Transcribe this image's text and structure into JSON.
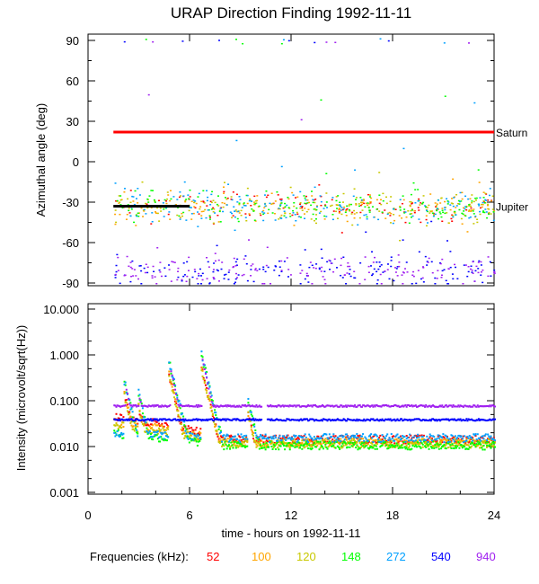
{
  "chart_data": [
    {
      "type": "scatter",
      "title": "URAP Direction Finding  1992-11-11",
      "ylabel": "Azimuthal angle (deg)",
      "ylim": [
        -90,
        95
      ],
      "yticks": [
        "90",
        "60",
        "30",
        "0",
        "-30",
        "-60",
        "-90"
      ],
      "ytick_values": [
        90,
        60,
        30,
        0,
        -30,
        -60,
        -90
      ],
      "annotations": [
        {
          "text": "Saturn",
          "value": 22
        },
        {
          "text": "Jupiter",
          "value": -33
        }
      ],
      "reference_lines": [
        {
          "name": "Saturn",
          "color": "#ff0000",
          "value": 22,
          "x": [
            1.5,
            24
          ]
        },
        {
          "name": "Jupiter",
          "color": "#000000",
          "value": -33,
          "x": [
            1.5,
            6
          ]
        }
      ],
      "clusters": [
        {
          "freqs": [
            "52",
            "100",
            "120",
            "148",
            "272"
          ],
          "center": -33,
          "spread": 8,
          "x": [
            1.5,
            24
          ]
        },
        {
          "freqs": [
            "540",
            "940"
          ],
          "center": -80,
          "spread": 8,
          "x": [
            1.5,
            24
          ]
        }
      ]
    },
    {
      "type": "line",
      "xlabel": "time - hours on 1992-11-11",
      "ylabel": "Intensity (microvolt/sqrt(Hz))",
      "yscale": "log",
      "ylim": [
        0.001,
        10
      ],
      "yticks": [
        "10.000",
        "1.000",
        "0.100",
        "0.010",
        "0.001"
      ],
      "ytick_values": [
        10,
        1,
        0.1,
        0.01,
        0.001
      ],
      "xlim": [
        0,
        24
      ],
      "xticks": [
        "0",
        "6",
        "12",
        "18",
        "24"
      ],
      "xtick_values": [
        0,
        6,
        12,
        18,
        24
      ],
      "legend_label": "Frequencies (kHz):",
      "series": [
        {
          "name": "52",
          "color": "#ff0000",
          "baseline": 0.015,
          "start": 0.045
        },
        {
          "name": "100",
          "color": "#ffa500",
          "baseline": 0.013,
          "start": 0.035
        },
        {
          "name": "120",
          "color": "#c8c800",
          "baseline": 0.012,
          "start": 0.03
        },
        {
          "name": "148",
          "color": "#00ff00",
          "baseline": 0.011,
          "start": 0.02
        },
        {
          "name": "272",
          "color": "#00a0ff",
          "baseline": 0.016,
          "start": 0.02
        },
        {
          "name": "540",
          "color": "#0000ff",
          "baseline": 0.04,
          "start": 0.04
        },
        {
          "name": "940",
          "color": "#a020f0",
          "baseline": 0.08,
          "start": 0.08
        }
      ],
      "bursts": [
        {
          "hour": 2.2,
          "peak": 0.2
        },
        {
          "hour": 3.0,
          "peak": 0.12
        },
        {
          "hour": 4.8,
          "peak": 0.6
        },
        {
          "hour": 6.7,
          "peak": 0.9
        },
        {
          "hour": 9.5,
          "peak": 0.08
        }
      ]
    }
  ]
}
